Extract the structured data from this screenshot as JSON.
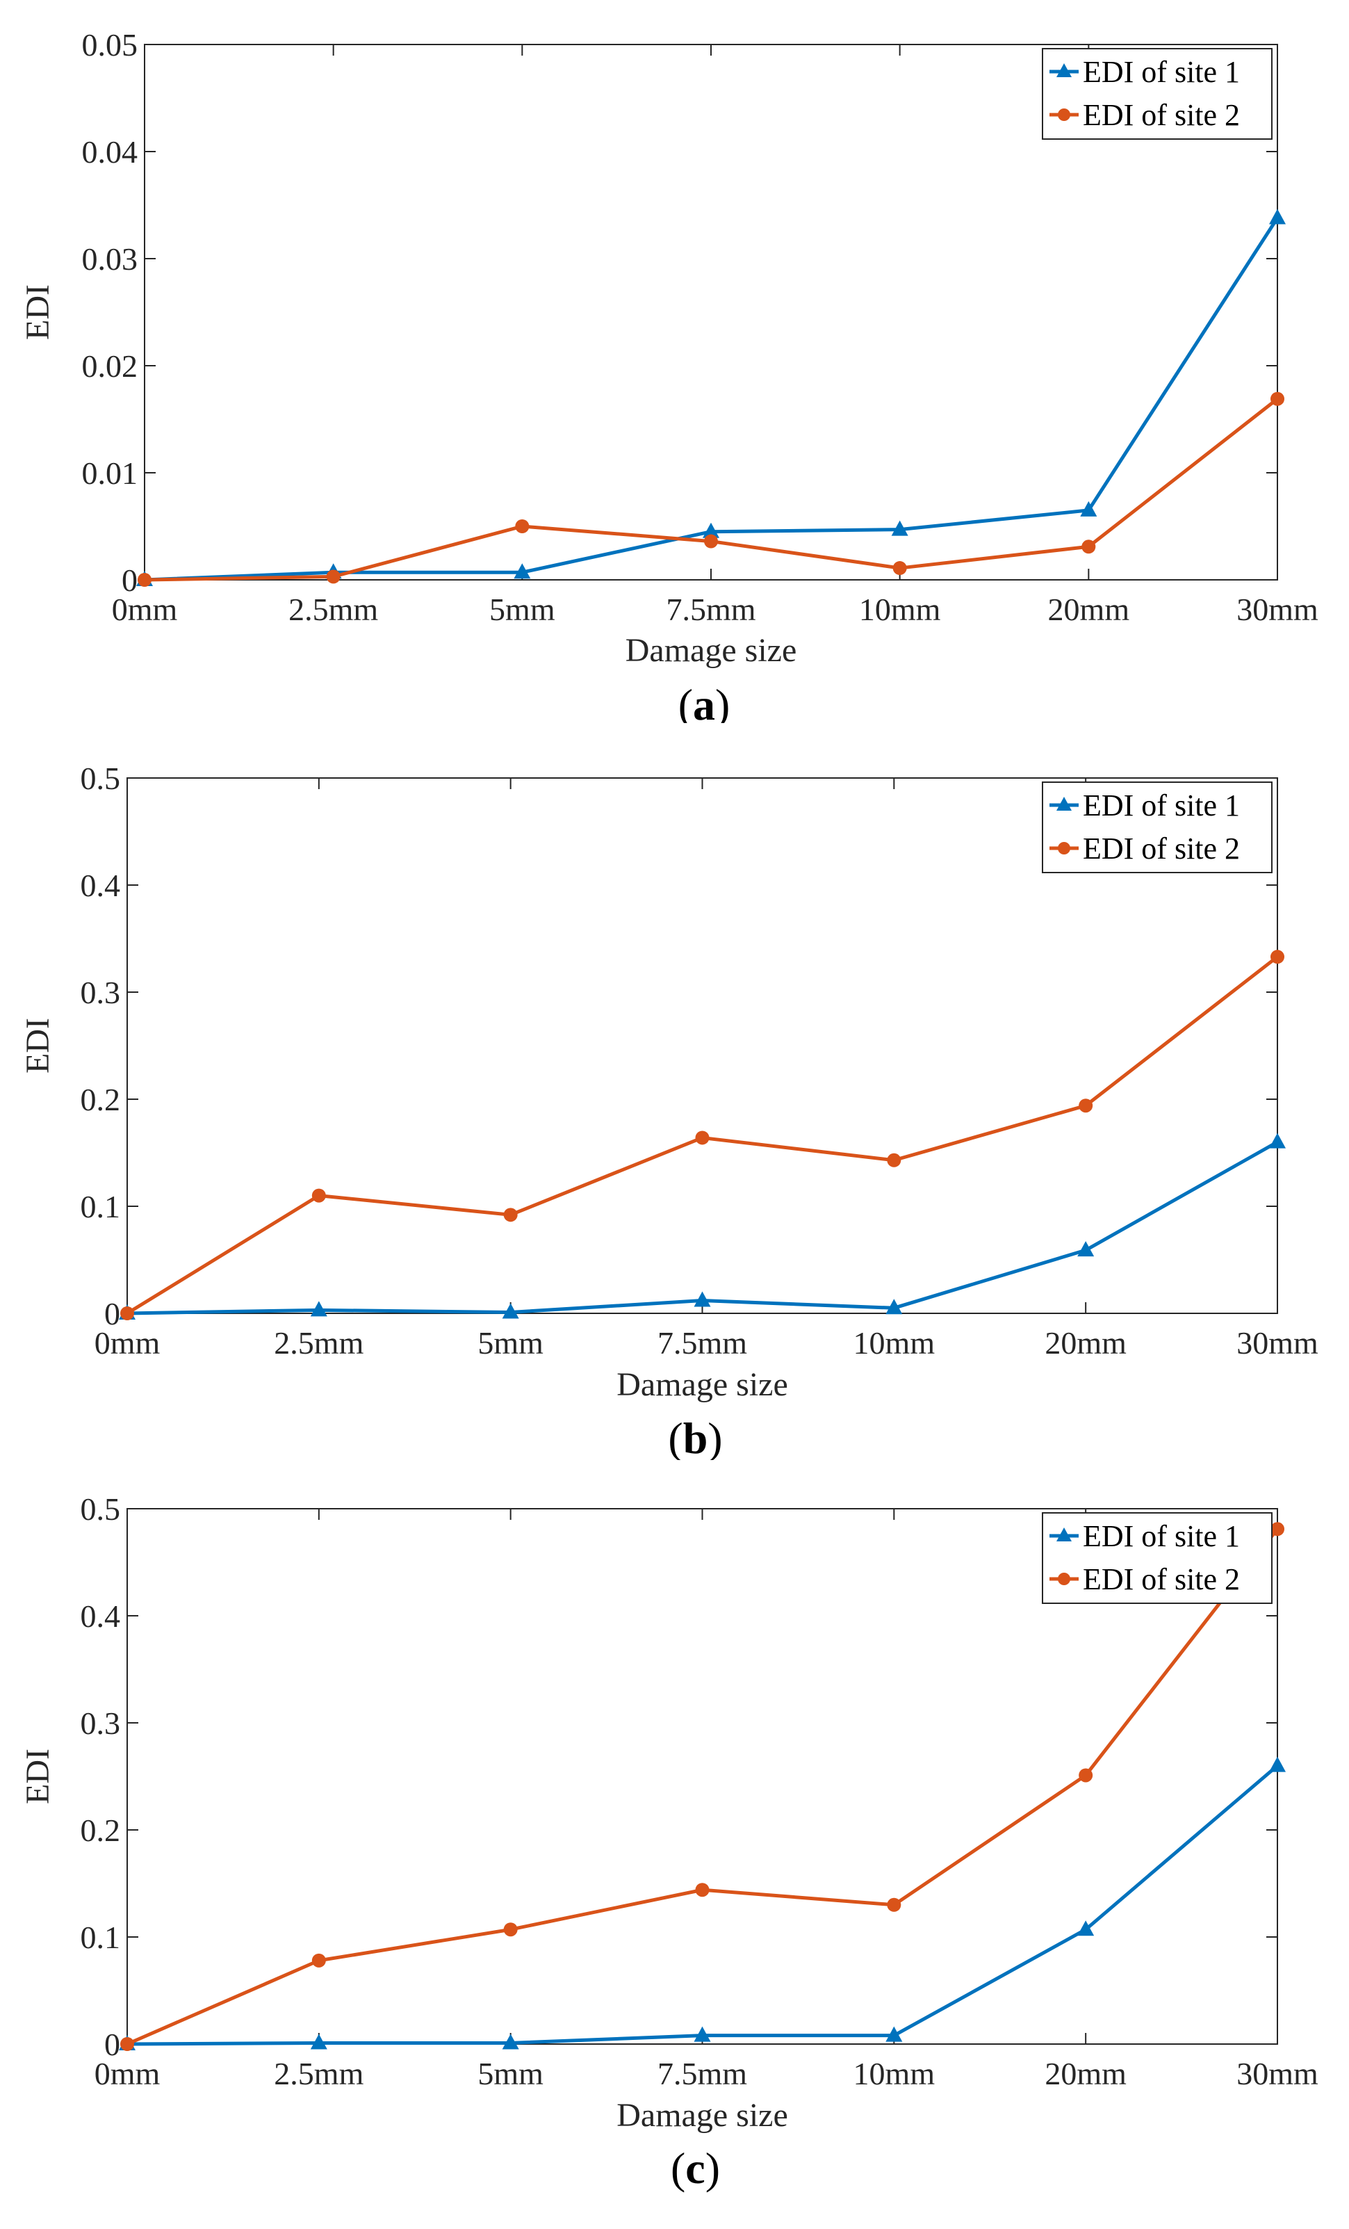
{
  "colors": {
    "site1": "#0072BD",
    "site2": "#D95319"
  },
  "chart_data": [
    {
      "type": "line",
      "panel_label": "a",
      "categories": [
        "0mm",
        "2.5mm",
        "5mm",
        "7.5mm",
        "10mm",
        "20mm",
        "30mm"
      ],
      "xlabel": "Damage size",
      "ylabel": "EDI",
      "ylim": [
        0,
        0.05
      ],
      "yticks": [
        0,
        0.01,
        0.02,
        0.03,
        0.04,
        0.05
      ],
      "ytick_labels": [
        "0",
        "0.01",
        "0.02",
        "0.03",
        "0.04",
        "0.05"
      ],
      "legend": "top-right",
      "series": [
        {
          "name": "EDI of site 1",
          "marker": "triangle",
          "values": [
            0,
            0.0007,
            0.0007,
            0.0045,
            0.0047,
            0.0065,
            0.0338
          ]
        },
        {
          "name": "EDI of site 2",
          "marker": "circle",
          "values": [
            0,
            0.0003,
            0.005,
            0.0036,
            0.0011,
            0.0031,
            0.0169
          ]
        }
      ]
    },
    {
      "type": "line",
      "panel_label": "b",
      "categories": [
        "0mm",
        "2.5mm",
        "5mm",
        "7.5mm",
        "10mm",
        "20mm",
        "30mm"
      ],
      "xlabel": "Damage size",
      "ylabel": "EDI",
      "ylim": [
        0,
        0.5
      ],
      "yticks": [
        0,
        0.1,
        0.2,
        0.3,
        0.4,
        0.5
      ],
      "ytick_labels": [
        "0",
        "0.1",
        "0.2",
        "0.3",
        "0.4",
        "0.5"
      ],
      "legend": "top-right",
      "series": [
        {
          "name": "EDI of site 1",
          "marker": "triangle",
          "values": [
            0,
            0.003,
            0.001,
            0.012,
            0.005,
            0.059,
            0.16
          ]
        },
        {
          "name": "EDI of site 2",
          "marker": "circle",
          "values": [
            0,
            0.11,
            0.092,
            0.164,
            0.143,
            0.194,
            0.333
          ]
        }
      ]
    },
    {
      "type": "line",
      "panel_label": "c",
      "categories": [
        "0mm",
        "2.5mm",
        "5mm",
        "7.5mm",
        "10mm",
        "20mm",
        "30mm"
      ],
      "xlabel": "Damage size",
      "ylabel": "EDI",
      "ylim": [
        0,
        0.5
      ],
      "yticks": [
        0,
        0.1,
        0.2,
        0.3,
        0.4,
        0.5
      ],
      "ytick_labels": [
        "0",
        "0.1",
        "0.2",
        "0.3",
        "0.4",
        "0.5"
      ],
      "legend": "top-right",
      "series": [
        {
          "name": "EDI of site 1",
          "marker": "triangle",
          "values": [
            0,
            0.001,
            0.001,
            0.008,
            0.008,
            0.107,
            0.26
          ]
        },
        {
          "name": "EDI of site 2",
          "marker": "circle",
          "values": [
            0,
            0.078,
            0.107,
            0.144,
            0.13,
            0.251,
            0.481
          ]
        }
      ]
    }
  ]
}
